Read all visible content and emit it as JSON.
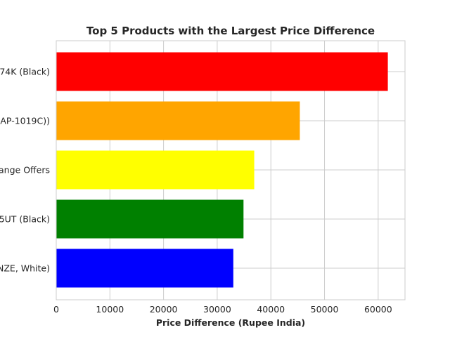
{
  "chart_data": {
    "type": "bar",
    "orientation": "horizontal",
    "title": "Top 5 Products with the Largest Price Difference",
    "xlabel": "Price Difference (Rupee India)",
    "ylabel": "",
    "categories": [
      "74K (Black)",
      "AP-1019C))",
      "ange Offers",
      "5UT (Black)",
      "NZE, White)"
    ],
    "values": [
      61800,
      45400,
      36900,
      34900,
      33000
    ],
    "colors": [
      "#ff0000",
      "#ffa500",
      "#ffff00",
      "#008000",
      "#0000ff"
    ],
    "xlim": [
      0,
      65000
    ],
    "xticks": [
      0,
      10000,
      20000,
      30000,
      40000,
      50000,
      60000
    ],
    "grid": true,
    "legend": "none"
  }
}
